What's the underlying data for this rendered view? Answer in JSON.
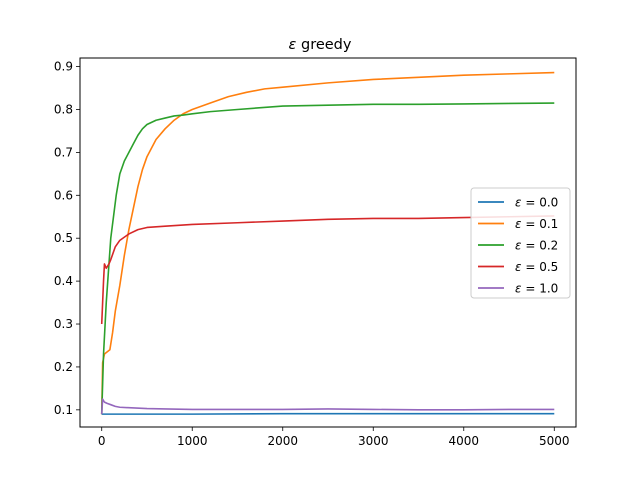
{
  "chart_data": {
    "type": "line",
    "title_symbol": "ε",
    "title_text": " greedy",
    "xlabel": "",
    "ylabel": "",
    "xlim": [
      -240,
      5240
    ],
    "ylim": [
      0.06,
      0.92
    ],
    "xticks": [
      0,
      1000,
      2000,
      3000,
      4000,
      5000
    ],
    "yticks": [
      0.1,
      0.2,
      0.3,
      0.4,
      0.5,
      0.6,
      0.7,
      0.8,
      0.9
    ],
    "grid": false,
    "legend": {
      "placement": "center-right",
      "symbol": "ε",
      "entries": [
        {
          "value": "0.0",
          "color": "#1f77b4"
        },
        {
          "value": "0.1",
          "color": "#ff7f0e"
        },
        {
          "value": "0.2",
          "color": "#2ca02c"
        },
        {
          "value": "0.5",
          "color": "#d62728"
        },
        {
          "value": "1.0",
          "color": "#9467bd"
        }
      ]
    },
    "series": [
      {
        "epsilon": "0.0",
        "color": "#1f77b4",
        "points": [
          [
            0,
            0.09
          ],
          [
            50,
            0.09
          ],
          [
            500,
            0.09
          ],
          [
            1000,
            0.09
          ],
          [
            2000,
            0.091
          ],
          [
            3000,
            0.091
          ],
          [
            4000,
            0.091
          ],
          [
            5000,
            0.091
          ]
        ]
      },
      {
        "epsilon": "0.1",
        "color": "#ff7f0e",
        "points": [
          [
            0,
            0.09
          ],
          [
            10,
            0.21
          ],
          [
            30,
            0.23
          ],
          [
            60,
            0.235
          ],
          [
            90,
            0.24
          ],
          [
            120,
            0.28
          ],
          [
            150,
            0.33
          ],
          [
            200,
            0.39
          ],
          [
            250,
            0.46
          ],
          [
            300,
            0.52
          ],
          [
            350,
            0.57
          ],
          [
            400,
            0.62
          ],
          [
            450,
            0.66
          ],
          [
            500,
            0.69
          ],
          [
            600,
            0.73
          ],
          [
            700,
            0.755
          ],
          [
            800,
            0.775
          ],
          [
            900,
            0.79
          ],
          [
            1000,
            0.8
          ],
          [
            1200,
            0.815
          ],
          [
            1400,
            0.83
          ],
          [
            1600,
            0.84
          ],
          [
            1800,
            0.848
          ],
          [
            2000,
            0.852
          ],
          [
            2500,
            0.862
          ],
          [
            3000,
            0.87
          ],
          [
            3500,
            0.875
          ],
          [
            4000,
            0.88
          ],
          [
            4500,
            0.883
          ],
          [
            5000,
            0.886
          ]
        ]
      },
      {
        "epsilon": "0.2",
        "color": "#2ca02c",
        "points": [
          [
            0,
            0.09
          ],
          [
            20,
            0.23
          ],
          [
            50,
            0.35
          ],
          [
            80,
            0.44
          ],
          [
            100,
            0.5
          ],
          [
            130,
            0.55
          ],
          [
            160,
            0.6
          ],
          [
            200,
            0.65
          ],
          [
            250,
            0.68
          ],
          [
            300,
            0.7
          ],
          [
            350,
            0.72
          ],
          [
            400,
            0.74
          ],
          [
            450,
            0.755
          ],
          [
            500,
            0.765
          ],
          [
            600,
            0.775
          ],
          [
            700,
            0.78
          ],
          [
            800,
            0.785
          ],
          [
            900,
            0.787
          ],
          [
            1000,
            0.79
          ],
          [
            1200,
            0.795
          ],
          [
            1500,
            0.8
          ],
          [
            2000,
            0.808
          ],
          [
            2500,
            0.81
          ],
          [
            3000,
            0.812
          ],
          [
            3500,
            0.812
          ],
          [
            4000,
            0.813
          ],
          [
            4500,
            0.814
          ],
          [
            5000,
            0.815
          ]
        ]
      },
      {
        "epsilon": "0.5",
        "color": "#d62728",
        "points": [
          [
            0,
            0.3
          ],
          [
            10,
            0.35
          ],
          [
            20,
            0.4
          ],
          [
            30,
            0.44
          ],
          [
            50,
            0.43
          ],
          [
            80,
            0.44
          ],
          [
            100,
            0.45
          ],
          [
            150,
            0.48
          ],
          [
            200,
            0.495
          ],
          [
            300,
            0.51
          ],
          [
            400,
            0.52
          ],
          [
            500,
            0.525
          ],
          [
            700,
            0.528
          ],
          [
            1000,
            0.532
          ],
          [
            1500,
            0.536
          ],
          [
            2000,
            0.54
          ],
          [
            2500,
            0.544
          ],
          [
            3000,
            0.546
          ],
          [
            3500,
            0.546
          ],
          [
            4000,
            0.548
          ],
          [
            4500,
            0.55
          ],
          [
            5000,
            0.552
          ]
        ]
      },
      {
        "epsilon": "1.0",
        "color": "#9467bd",
        "points": [
          [
            0,
            0.09
          ],
          [
            10,
            0.125
          ],
          [
            30,
            0.118
          ],
          [
            60,
            0.115
          ],
          [
            100,
            0.112
          ],
          [
            150,
            0.108
          ],
          [
            200,
            0.106
          ],
          [
            300,
            0.105
          ],
          [
            500,
            0.103
          ],
          [
            700,
            0.102
          ],
          [
            1000,
            0.101
          ],
          [
            1500,
            0.101
          ],
          [
            2000,
            0.101
          ],
          [
            2500,
            0.102
          ],
          [
            3000,
            0.101
          ],
          [
            3500,
            0.1
          ],
          [
            4000,
            0.1
          ],
          [
            4500,
            0.101
          ],
          [
            5000,
            0.101
          ]
        ]
      }
    ]
  }
}
